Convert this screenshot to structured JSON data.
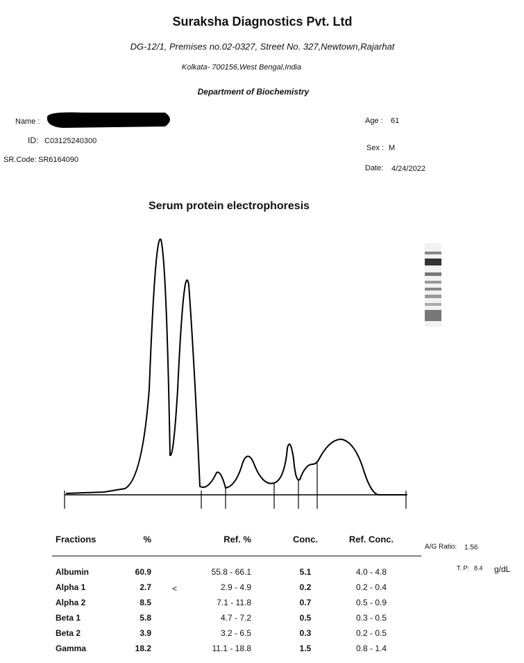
{
  "header": {
    "title": "Suraksha Diagnostics Pvt. Ltd",
    "address_line1": "DG-12/1, Premises no.02-0327, Street No. 327,Newtown,Rajarhat",
    "address_line2": "Kolkata- 700156,West Bengal,India",
    "department": "Department of Biochemistry"
  },
  "patient": {
    "name_label": "Name :",
    "id_label": "ID:",
    "id": "C03125240300",
    "sr_code_label": "SR.Code:",
    "sr_code": "SR6164090",
    "age_label": "Age :",
    "age": "61",
    "sex_label": "Sex :",
    "sex": "M",
    "date_label": "Date:",
    "date": "4/24/2022"
  },
  "graph_title": "Serum protein electrophoresis",
  "table": {
    "columns": [
      "Fractions",
      "%",
      "Ref. %",
      "Conc.",
      "Ref. Conc."
    ],
    "rows": [
      {
        "fraction": "Albumin",
        "percent": "60.9",
        "ref_percent": "55.8 - 66.1",
        "conc": "5.1",
        "ref_conc": "4.0 - 4.8"
      },
      {
        "fraction": "Alpha 1",
        "percent": "2.7",
        "flag": "<",
        "ref_percent": "2.9 - 4.9",
        "conc": "0.2",
        "ref_conc": "0.2 - 0.4"
      },
      {
        "fraction": "Alpha 2",
        "percent": "8.5",
        "ref_percent": "7.1 - 11.8",
        "conc": "0.7",
        "ref_conc": "0.5 - 0.9"
      },
      {
        "fraction": "Beta 1",
        "percent": "5.8",
        "ref_percent": "4.7 - 7.2",
        "conc": "0.5",
        "ref_conc": "0.3 - 0.5"
      },
      {
        "fraction": "Beta 2",
        "percent": "3.9",
        "ref_percent": "3.2 - 6.5",
        "conc": "0.3",
        "ref_conc": "0.2 - 0.5"
      },
      {
        "fraction": "Gamma",
        "percent": "18.2",
        "ref_percent": "11.1 - 18.8",
        "conc": "1.5",
        "ref_conc": "0.8 - 1.4"
      }
    ]
  },
  "summary": {
    "ag_ratio_label": "A/G Ratio:",
    "ag_ratio": "1.56",
    "tp_label": "T. P:",
    "tp": "8.4",
    "unit": "g/dL"
  }
}
